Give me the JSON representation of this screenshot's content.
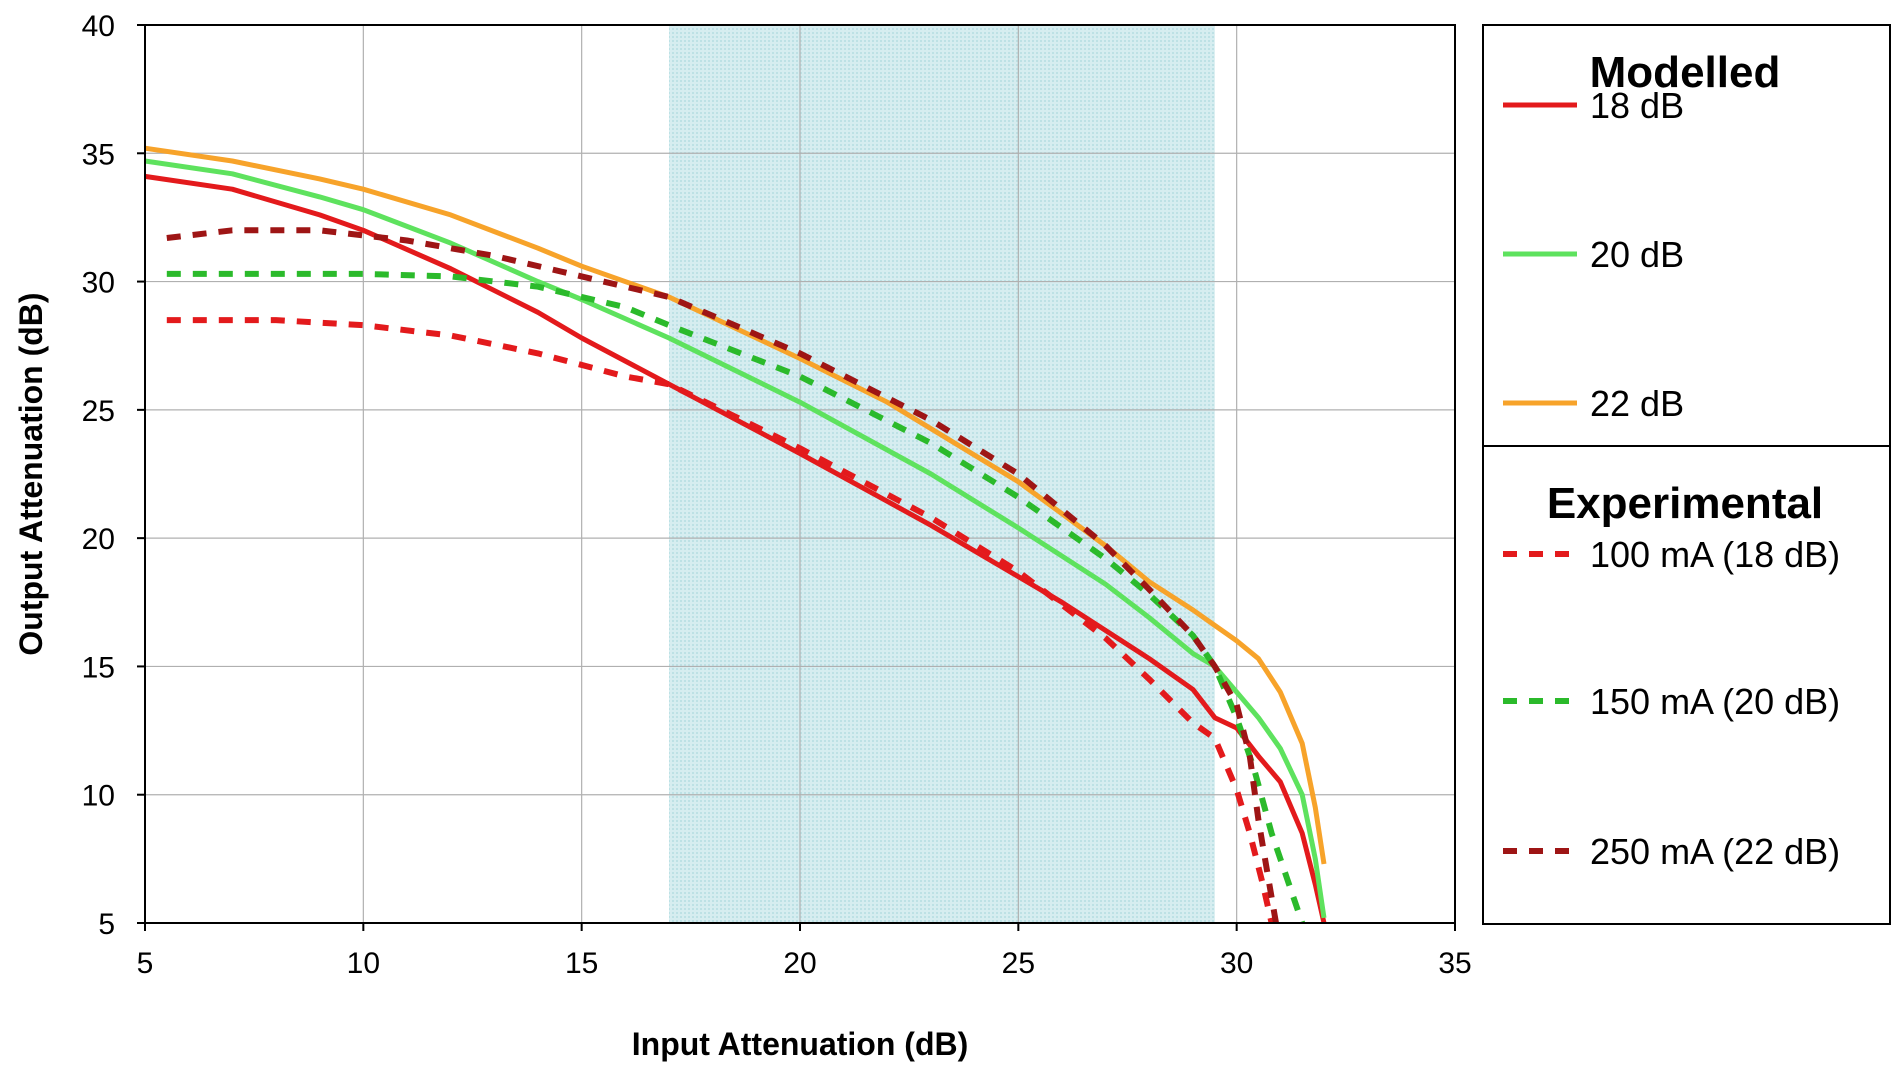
{
  "chart_data": {
    "type": "line",
    "title": "",
    "xlabel": "Input Attenuation (dB)",
    "ylabel": "Output Attenuation (dB)",
    "xlim": [
      5,
      35
    ],
    "ylim": [
      5,
      40
    ],
    "xticks": [
      5,
      10,
      15,
      20,
      25,
      30,
      35
    ],
    "yticks": [
      5,
      10,
      15,
      20,
      25,
      30,
      35,
      40
    ],
    "grid": true,
    "highlight_band": {
      "x_from": 17,
      "x_to": 29.5,
      "color": "#cfe9ec"
    },
    "legend": {
      "placement": "right",
      "groups": [
        {
          "heading": "Modelled",
          "series_indices": [
            0,
            1,
            2
          ]
        },
        {
          "heading": "Experimental",
          "series_indices": [
            3,
            4,
            5
          ]
        }
      ]
    },
    "series": [
      {
        "name": "18 dB",
        "group": "Modelled",
        "style": "solid",
        "color": "#e31a1c",
        "points": [
          [
            5,
            34.1
          ],
          [
            7,
            33.6
          ],
          [
            9,
            32.6
          ],
          [
            10,
            32.0
          ],
          [
            12,
            30.5
          ],
          [
            14,
            28.8
          ],
          [
            15,
            27.8
          ],
          [
            17,
            26.0
          ],
          [
            20,
            23.3
          ],
          [
            23,
            20.5
          ],
          [
            26,
            17.5
          ],
          [
            28,
            15.3
          ],
          [
            29,
            14.1
          ],
          [
            29.5,
            13.0
          ],
          [
            30,
            12.6
          ],
          [
            30.5,
            11.5
          ],
          [
            31,
            10.5
          ],
          [
            31.5,
            8.5
          ],
          [
            31.8,
            6.5
          ],
          [
            32.0,
            5.0
          ]
        ]
      },
      {
        "name": "20 dB",
        "group": "Modelled",
        "style": "solid",
        "color": "#5ee25e",
        "points": [
          [
            5,
            34.7
          ],
          [
            7,
            34.2
          ],
          [
            9,
            33.3
          ],
          [
            10,
            32.8
          ],
          [
            12,
            31.5
          ],
          [
            14,
            30.0
          ],
          [
            15,
            29.3
          ],
          [
            17,
            27.8
          ],
          [
            20,
            25.3
          ],
          [
            23,
            22.5
          ],
          [
            25,
            20.4
          ],
          [
            27,
            18.2
          ],
          [
            28,
            16.9
          ],
          [
            29,
            15.5
          ],
          [
            29.5,
            15.0
          ],
          [
            30,
            14.0
          ],
          [
            30.5,
            13.0
          ],
          [
            31,
            11.8
          ],
          [
            31.5,
            10.0
          ],
          [
            31.8,
            7.5
          ],
          [
            32.0,
            5.2
          ]
        ]
      },
      {
        "name": "22 dB",
        "group": "Modelled",
        "style": "solid",
        "color": "#f7a32a",
        "points": [
          [
            5,
            35.2
          ],
          [
            7,
            34.7
          ],
          [
            9,
            34.0
          ],
          [
            10,
            33.6
          ],
          [
            12,
            32.6
          ],
          [
            14,
            31.3
          ],
          [
            15,
            30.6
          ],
          [
            17,
            29.4
          ],
          [
            20,
            27.0
          ],
          [
            22,
            25.3
          ],
          [
            25,
            22.2
          ],
          [
            27,
            19.7
          ],
          [
            28,
            18.3
          ],
          [
            29,
            17.2
          ],
          [
            29.5,
            16.6
          ],
          [
            30,
            16.0
          ],
          [
            30.5,
            15.3
          ],
          [
            31,
            14.0
          ],
          [
            31.5,
            12.0
          ],
          [
            31.8,
            9.5
          ],
          [
            32.0,
            7.3
          ]
        ]
      },
      {
        "name": "100 mA (18 dB)",
        "group": "Experimental",
        "style": "dashed",
        "color": "#e31a1c",
        "points": [
          [
            5.5,
            28.5
          ],
          [
            8,
            28.5
          ],
          [
            10,
            28.3
          ],
          [
            12,
            27.9
          ],
          [
            14,
            27.2
          ],
          [
            16,
            26.3
          ],
          [
            17,
            26.0
          ],
          [
            20,
            23.5
          ],
          [
            23,
            20.8
          ],
          [
            25,
            18.7
          ],
          [
            27,
            16.1
          ],
          [
            28,
            14.5
          ],
          [
            29,
            12.8
          ],
          [
            29.5,
            12.2
          ],
          [
            30,
            10.2
          ],
          [
            30.3,
            8.5
          ],
          [
            30.6,
            6.5
          ],
          [
            30.8,
            5.0
          ]
        ]
      },
      {
        "name": "150 mA (20 dB)",
        "group": "Experimental",
        "style": "dashed",
        "color": "#2bba2b",
        "points": [
          [
            5.5,
            30.3
          ],
          [
            8,
            30.3
          ],
          [
            10,
            30.3
          ],
          [
            12,
            30.2
          ],
          [
            14,
            29.8
          ],
          [
            16,
            29.0
          ],
          [
            17,
            28.3
          ],
          [
            20,
            26.3
          ],
          [
            23,
            23.7
          ],
          [
            25,
            21.6
          ],
          [
            27,
            19.2
          ],
          [
            28,
            17.8
          ],
          [
            29,
            16.2
          ],
          [
            29.5,
            15.0
          ],
          [
            30,
            13.0
          ],
          [
            30.4,
            11.0
          ],
          [
            30.8,
            8.5
          ],
          [
            31.2,
            6.5
          ],
          [
            31.5,
            5.0
          ]
        ]
      },
      {
        "name": "250 mA (22 dB)",
        "group": "Experimental",
        "style": "dashed",
        "color": "#9e1515",
        "points": [
          [
            5.5,
            31.7
          ],
          [
            7,
            32.0
          ],
          [
            9,
            32.0
          ],
          [
            11,
            31.6
          ],
          [
            13,
            31.0
          ],
          [
            15,
            30.2
          ],
          [
            17,
            29.4
          ],
          [
            20,
            27.2
          ],
          [
            23,
            24.6
          ],
          [
            25,
            22.5
          ],
          [
            27,
            19.7
          ],
          [
            28,
            18.0
          ],
          [
            29,
            16.2
          ],
          [
            29.5,
            15.0
          ],
          [
            30,
            13.5
          ],
          [
            30.3,
            11.5
          ],
          [
            30.5,
            9.0
          ],
          [
            30.7,
            7.0
          ],
          [
            30.9,
            5.0
          ]
        ]
      }
    ]
  }
}
